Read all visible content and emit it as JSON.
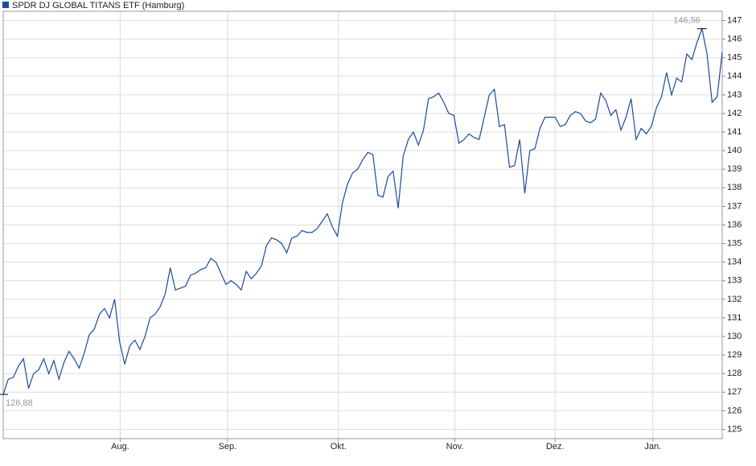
{
  "chart_data": {
    "type": "line",
    "series": [
      {
        "name": "SPDR DJ GLOBAL TITANS ETF (Hamburg)",
        "color": "#1a4b9c",
        "values": [
          126.88,
          127.7,
          127.8,
          128.4,
          128.8,
          127.2,
          128.0,
          128.2,
          128.8,
          128.0,
          128.7,
          127.7,
          128.6,
          129.2,
          128.8,
          128.3,
          129.1,
          130.1,
          130.4,
          131.2,
          131.5,
          131.0,
          132.0,
          129.7,
          128.5,
          129.5,
          129.8,
          129.3,
          130.0,
          131.0,
          131.2,
          131.6,
          132.3,
          133.7,
          132.5,
          132.6,
          132.7,
          133.3,
          133.4,
          133.6,
          133.7,
          134.2,
          134.0,
          133.4,
          132.8,
          133.0,
          132.8,
          132.5,
          133.5,
          133.1,
          133.4,
          133.8,
          134.9,
          135.3,
          135.2,
          135.0,
          134.5,
          135.3,
          135.4,
          135.7,
          135.6,
          135.6,
          135.8,
          136.2,
          136.6,
          135.9,
          135.4,
          137.2,
          138.2,
          138.8,
          139.0,
          139.5,
          139.9,
          139.8,
          137.6,
          137.5,
          138.6,
          138.9,
          136.9,
          139.7,
          140.6,
          141.0,
          140.3,
          141.1,
          142.8,
          142.9,
          143.1,
          142.6,
          142.0,
          141.9,
          140.4,
          140.6,
          140.9,
          140.7,
          140.6,
          141.8,
          143.0,
          143.3,
          141.3,
          141.4,
          139.1,
          139.2,
          140.6,
          137.7,
          140.0,
          140.1,
          141.2,
          141.8,
          141.8,
          141.8,
          141.3,
          141.4,
          141.9,
          142.1,
          142.0,
          141.6,
          141.5,
          141.7,
          143.1,
          142.7,
          141.9,
          142.2,
          141.1,
          141.8,
          142.8,
          140.6,
          141.2,
          140.9,
          141.3,
          142.3,
          142.9,
          144.2,
          143.0,
          143.9,
          143.7,
          145.2,
          144.9,
          145.8,
          146.56,
          145.2,
          142.6,
          142.9,
          145.3
        ]
      }
    ],
    "xlim": [
      0,
      142
    ],
    "xticks": [
      {
        "value": 23.1,
        "label": "Aug."
      },
      {
        "value": 44.3,
        "label": "Sep."
      },
      {
        "value": 66.2,
        "label": "Okt."
      },
      {
        "value": 89.2,
        "label": "Nov."
      },
      {
        "value": 109.0,
        "label": "Dez."
      },
      {
        "value": 128.3,
        "label": "Jan."
      }
    ],
    "ylim": [
      124.5,
      147.5
    ],
    "yticks": [
      125,
      126,
      127,
      128,
      129,
      130,
      131,
      132,
      133,
      134,
      135,
      136,
      137,
      138,
      139,
      140,
      141,
      142,
      143,
      144,
      145,
      146,
      147
    ],
    "annotations": [
      {
        "x": 0,
        "value": 126.88,
        "label": "126,88"
      },
      {
        "x": 138,
        "value": 146.56,
        "label": "146,56"
      }
    ],
    "grid": true
  }
}
